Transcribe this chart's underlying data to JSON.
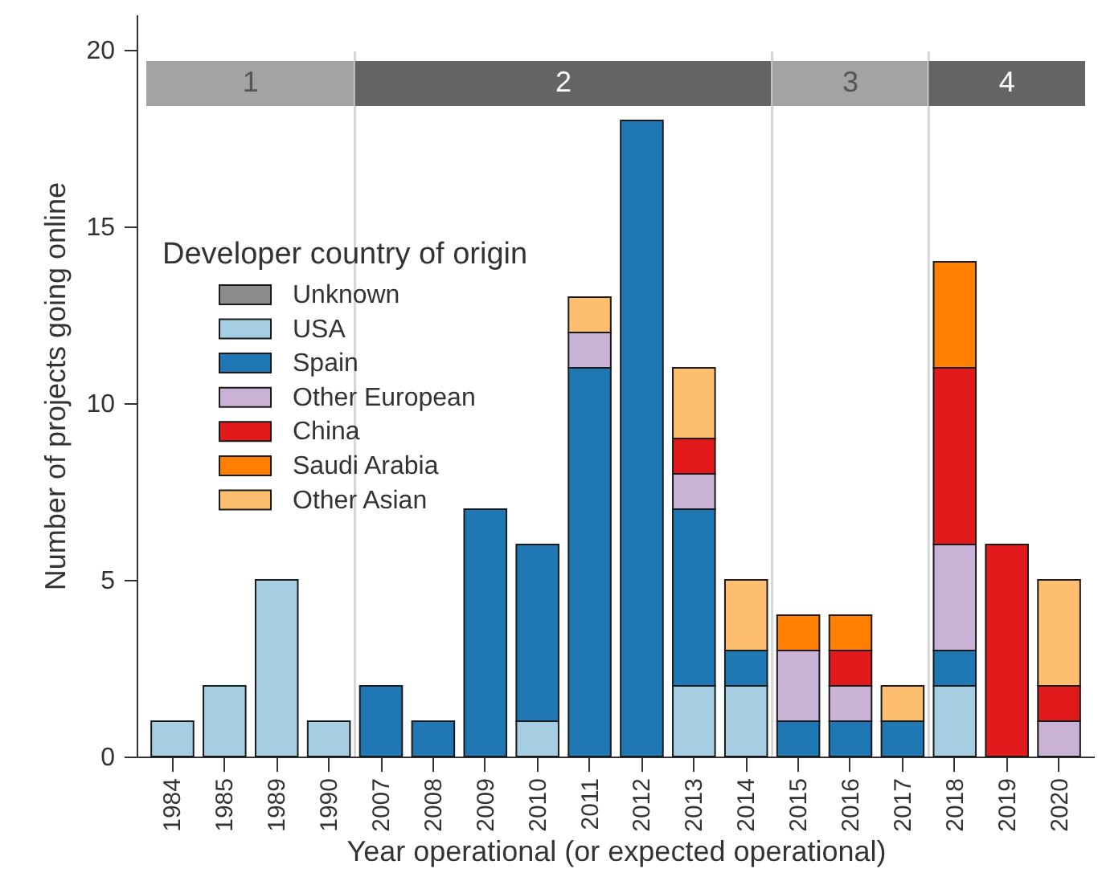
{
  "chart_data": {
    "type": "bar",
    "xlabel": "Year operational (or expected operational)",
    "ylabel": "Number of projects going online",
    "legend_title": "Developer country of origin",
    "categories": [
      "1984",
      "1985",
      "1989",
      "1990",
      "2007",
      "2008",
      "2009",
      "2010",
      "2011",
      "2012",
      "2013",
      "2014",
      "2015",
      "2016",
      "2017",
      "2018",
      "2019",
      "2020"
    ],
    "series": [
      {
        "name": "Unknown",
        "color": "#8c8c8c",
        "values": [
          null,
          null,
          null,
          null,
          null,
          null,
          null,
          null,
          null,
          null,
          null,
          null,
          null,
          null,
          null,
          null,
          null,
          null
        ]
      },
      {
        "name": "USA",
        "color": "#a6cee3",
        "values": [
          1,
          2,
          5,
          1,
          null,
          null,
          null,
          1,
          null,
          null,
          2,
          2,
          null,
          null,
          null,
          2,
          null,
          null
        ]
      },
      {
        "name": "Spain",
        "color": "#1f78b4",
        "values": [
          null,
          null,
          null,
          null,
          2,
          1,
          7,
          5,
          11,
          18,
          5,
          1,
          1,
          1,
          1,
          1,
          null,
          null
        ]
      },
      {
        "name": "Other European",
        "color": "#cab2d6",
        "values": [
          null,
          null,
          null,
          null,
          null,
          null,
          null,
          null,
          1,
          null,
          1,
          null,
          2,
          1,
          null,
          3,
          null,
          1
        ]
      },
      {
        "name": "China",
        "color": "#e31a1c",
        "values": [
          null,
          null,
          null,
          null,
          null,
          null,
          null,
          null,
          null,
          null,
          1,
          null,
          null,
          1,
          null,
          5,
          6,
          1
        ]
      },
      {
        "name": "Saudi Arabia",
        "color": "#ff7f00",
        "values": [
          null,
          null,
          null,
          null,
          null,
          null,
          null,
          null,
          null,
          null,
          null,
          null,
          1,
          1,
          null,
          3,
          null,
          null
        ]
      },
      {
        "name": "Other Asian",
        "color": "#fdbf6f",
        "values": [
          null,
          null,
          null,
          null,
          null,
          null,
          null,
          null,
          1,
          null,
          2,
          2,
          null,
          null,
          1,
          null,
          null,
          3
        ]
      }
    ],
    "stacked": true,
    "ylim": [
      0,
      21
    ],
    "yticks": [
      0,
      5,
      10,
      15,
      20
    ],
    "legend": "left",
    "bands": [
      {
        "axis": "x",
        "from": "1984",
        "to": "1990",
        "label": "1",
        "color": "#a3a3a3"
      },
      {
        "axis": "x",
        "from": "2007",
        "to": "2014",
        "label": "2",
        "color": "#646464"
      },
      {
        "axis": "x",
        "from": "2015",
        "to": "2017",
        "label": "3",
        "color": "#a3a3a3"
      },
      {
        "axis": "x",
        "from": "2018",
        "to": "2020",
        "label": "4",
        "color": "#646464"
      }
    ]
  }
}
